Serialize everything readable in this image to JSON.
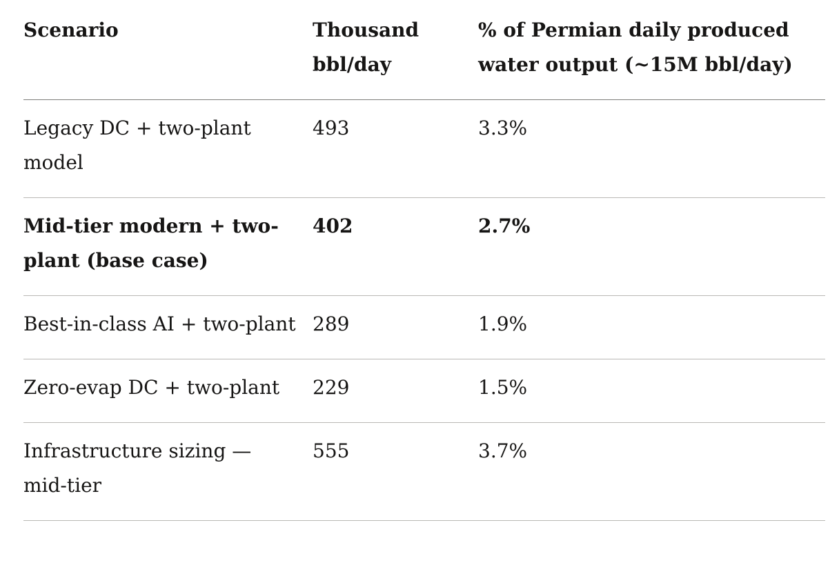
{
  "table": {
    "columns": [
      {
        "label": "Scenario"
      },
      {
        "label": "Thousand bbl/day"
      },
      {
        "label": "% of Permian daily produced water output (~15M bbl/day)"
      }
    ],
    "rows": [
      {
        "scenario": "Legacy DC + two-plant model",
        "thousand_bbl_day": "493",
        "pct_permian_water": "3.3%",
        "bold": false
      },
      {
        "scenario": "Mid-tier modern + two-plant (base case)",
        "thousand_bbl_day": "402",
        "pct_permian_water": "2.7%",
        "bold": true
      },
      {
        "scenario": "Best-in-class AI + two-plant",
        "thousand_bbl_day": "289",
        "pct_permian_water": "1.9%",
        "bold": false
      },
      {
        "scenario": "Zero-evap DC + two-plant",
        "thousand_bbl_day": "229",
        "pct_permian_water": "1.5%",
        "bold": false
      },
      {
        "scenario": "Infrastructure sizing — mid-tier",
        "thousand_bbl_day": "555",
        "pct_permian_water": "3.7%",
        "bold": false
      }
    ]
  },
  "colors": {
    "background": "#ffffff",
    "text": "#161514",
    "header_rule": "#7d7c78",
    "row_rule": "#b9b8b4"
  }
}
